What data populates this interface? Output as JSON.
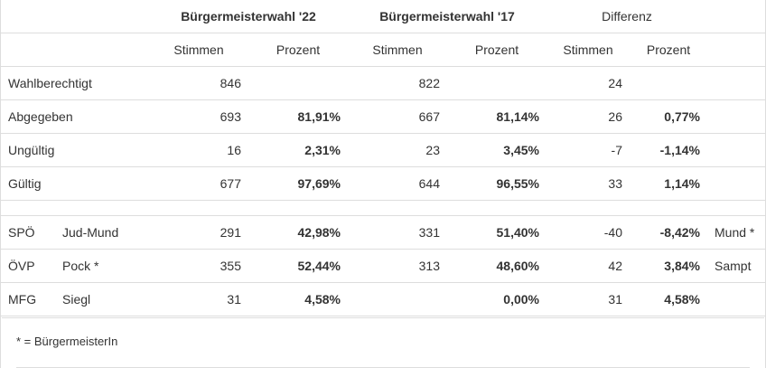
{
  "header": {
    "group_22": "Bürgermeisterwahl '22",
    "group_17": "Bürgermeisterwahl '17",
    "group_diff": "Differenz",
    "stimmen": "Stimmen",
    "prozent": "Prozent"
  },
  "rows": [
    {
      "label": "Wahlberechtigt",
      "sub": "",
      "v22": "846",
      "p22": "",
      "v17": "822",
      "p17": "",
      "dv": "24",
      "dp": "",
      "note": ""
    },
    {
      "label": "Abgegeben",
      "sub": "",
      "v22": "693",
      "p22": "81,91%",
      "v17": "667",
      "p17": "81,14%",
      "dv": "26",
      "dp": "0,77%",
      "note": ""
    },
    {
      "label": "Ungültig",
      "sub": "",
      "v22": "16",
      "p22": "2,31%",
      "v17": "23",
      "p17": "3,45%",
      "dv": "-7",
      "dp": "-1,14%",
      "note": ""
    },
    {
      "label": "Gültig",
      "sub": "",
      "v22": "677",
      "p22": "97,69%",
      "v17": "644",
      "p17": "96,55%",
      "dv": "33",
      "dp": "1,14%",
      "note": ""
    }
  ],
  "parties": [
    {
      "label": "SPÖ",
      "sub": "Jud-Mund",
      "v22": "291",
      "p22": "42,98%",
      "v17": "331",
      "p17": "51,40%",
      "dv": "-40",
      "dp": "-8,42%",
      "note": "Mund *"
    },
    {
      "label": "ÖVP",
      "sub": "Pock *",
      "v22": "355",
      "p22": "52,44%",
      "v17": "313",
      "p17": "48,60%",
      "dv": "42",
      "dp": "3,84%",
      "note": "Sampt"
    },
    {
      "label": "MFG",
      "sub": "Siegl",
      "v22": "31",
      "p22": "4,58%",
      "v17": "",
      "p17": "0,00%",
      "dv": "31",
      "dp": "4,58%",
      "note": ""
    }
  ],
  "footer": {
    "note": "* = BürgermeisterIn"
  }
}
